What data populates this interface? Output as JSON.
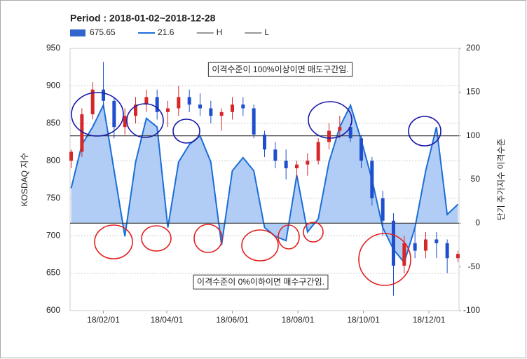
{
  "chart_data": {
    "type": "candlestick",
    "title": "Period : 2018-01-02~2018-12-28",
    "y_label": "KOSDAQ 지수",
    "y2_label": "단기 주가지수 이격수준",
    "annotations": [
      "이격수준이 100%이상이면 매도구간임.",
      "이격수준이 0%이하이면 매수구간임."
    ],
    "x": [
      1,
      11,
      21,
      31,
      41,
      51,
      61,
      71,
      81,
      91,
      101,
      111,
      121,
      131,
      141,
      151,
      161,
      171,
      181,
      191,
      201,
      211,
      221,
      231,
      241,
      251,
      261,
      271,
      281,
      291,
      301,
      311,
      321,
      331,
      341,
      351,
      361
    ],
    "xlim": [
      0,
      362
    ],
    "xticks": [
      {
        "value": 31,
        "label": "18/02/01"
      },
      {
        "value": 90,
        "label": "18/04/01"
      },
      {
        "value": 151,
        "label": "18/06/01"
      },
      {
        "value": 212,
        "label": "18/08/01"
      },
      {
        "value": 273,
        "label": "18/10/01"
      },
      {
        "value": 334,
        "label": "18/12/01"
      }
    ],
    "ylim": [
      600,
      950
    ],
    "yticks": [
      600,
      650,
      700,
      750,
      800,
      850,
      900,
      950
    ],
    "y2lim": [
      -100,
      200
    ],
    "y2ticks": [
      -100,
      -50,
      0,
      50,
      100,
      150,
      200
    ],
    "grid": true,
    "series": [
      {
        "name": "675.65",
        "color": "#3366cc",
        "up_color": "#d62728",
        "down_color": "#1f4fcc",
        "open": [
          800,
          812,
          862,
          895,
          880,
          845,
          860,
          875,
          885,
          865,
          870,
          885,
          875,
          870,
          860,
          865,
          875,
          870,
          835,
          815,
          800,
          790,
          795,
          800,
          825,
          840,
          845,
          830,
          800,
          750,
          720,
          660,
          690,
          680,
          695,
          690,
          670
        ],
        "high": [
          815,
          870,
          905,
          932,
          885,
          870,
          885,
          895,
          895,
          880,
          900,
          895,
          890,
          880,
          870,
          885,
          885,
          875,
          840,
          825,
          815,
          800,
          810,
          830,
          850,
          860,
          850,
          835,
          805,
          760,
          730,
          700,
          710,
          705,
          705,
          695,
          680
        ],
        "low": [
          790,
          805,
          855,
          870,
          830,
          835,
          850,
          865,
          855,
          845,
          860,
          865,
          860,
          850,
          840,
          855,
          860,
          830,
          805,
          790,
          775,
          775,
          780,
          795,
          815,
          830,
          825,
          790,
          740,
          700,
          620,
          650,
          670,
          670,
          670,
          650,
          665
        ],
        "close": [
          812,
          862,
          895,
          880,
          845,
          860,
          875,
          885,
          865,
          870,
          885,
          875,
          870,
          860,
          865,
          875,
          870,
          835,
          815,
          800,
          790,
          795,
          800,
          825,
          840,
          845,
          830,
          800,
          750,
          720,
          660,
          690,
          680,
          695,
          690,
          670,
          675.65
        ]
      },
      {
        "name": "21.6",
        "axis": "y2",
        "color": "#1a6ed8",
        "fill": "#a9c8f4",
        "values": [
          40,
          90,
          110,
          135,
          60,
          -15,
          70,
          120,
          110,
          -5,
          70,
          90,
          100,
          70,
          -25,
          60,
          75,
          60,
          -5,
          -15,
          -20,
          55,
          -10,
          5,
          70,
          110,
          135,
          95,
          50,
          -5,
          -30,
          -45,
          -5,
          60,
          110,
          10,
          21.6
        ]
      },
      {
        "name": "H",
        "axis": "y2",
        "color": "#333333",
        "value": 100
      },
      {
        "name": "L",
        "axis": "y2",
        "color": "#333333",
        "value": 0
      }
    ]
  }
}
